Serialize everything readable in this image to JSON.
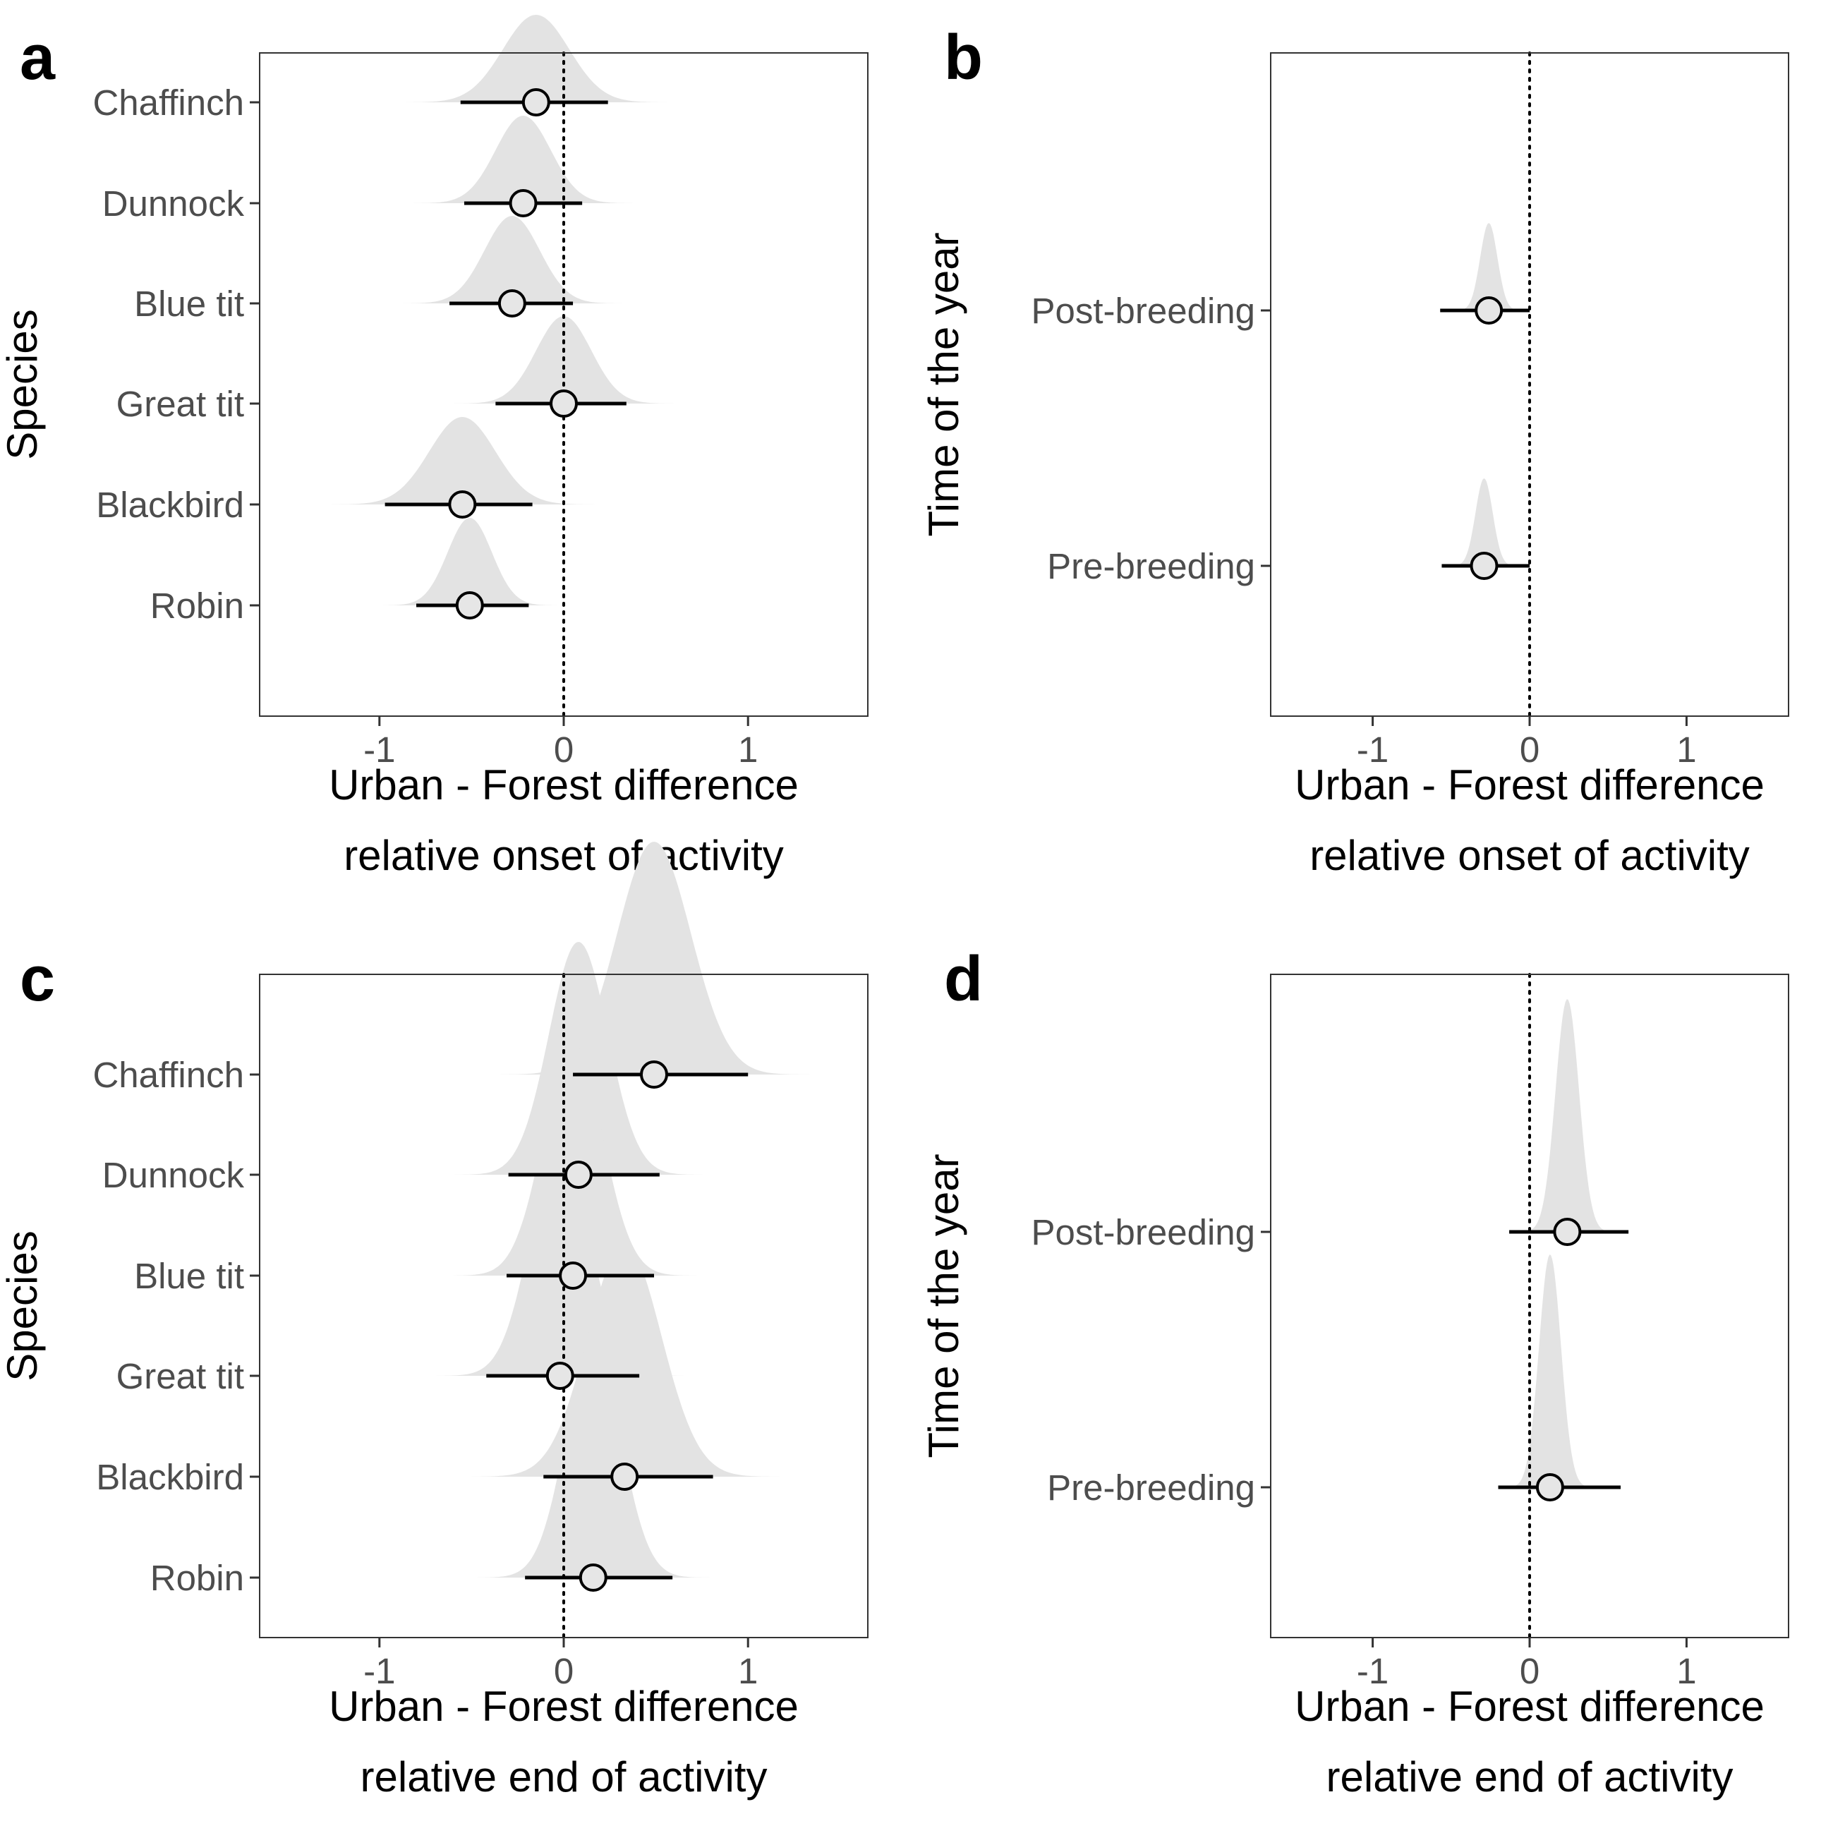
{
  "chart_data": [
    {
      "panel": "a",
      "type": "scatter",
      "xlabel": [
        "Urban - Forest difference",
        "relative onset of activity"
      ],
      "ylabel": "Species",
      "xlim": [
        -1.65,
        1.65
      ],
      "xticks": [
        -1,
        0,
        1
      ],
      "xtick_labels": [
        "-1",
        "0",
        "1"
      ],
      "reference_line": 0,
      "grid": false,
      "categories": [
        "Chaffinch",
        "Dunnock",
        "Blue tit",
        "Great tit",
        "Blackbird",
        "Robin"
      ],
      "estimates": [
        -0.15,
        -0.22,
        -0.28,
        0.0,
        -0.55,
        -0.51
      ],
      "interval_low": [
        -0.56,
        -0.54,
        -0.62,
        -0.37,
        -0.97,
        -0.8
      ],
      "interval_high": [
        0.24,
        0.1,
        0.05,
        0.34,
        -0.17,
        -0.19
      ],
      "density_sd": [
        0.18,
        0.15,
        0.15,
        0.15,
        0.18,
        0.12
      ],
      "density_range": [
        [
          -1.2,
          0.65
        ],
        [
          -0.85,
          0.45
        ],
        [
          -1.0,
          0.5
        ],
        [
          -0.8,
          0.8
        ],
        [
          -1.35,
          0.55
        ],
        [
          -1.15,
          0.1
        ]
      ]
    },
    {
      "panel": "b",
      "type": "scatter",
      "xlabel": [
        "Urban - Forest difference",
        "relative onset of activity"
      ],
      "ylabel": "Time of the year",
      "xlim": [
        -1.65,
        1.65
      ],
      "xticks": [
        -1,
        0,
        1
      ],
      "xtick_labels": [
        "-1",
        "0",
        "1"
      ],
      "reference_line": 0,
      "grid": false,
      "categories": [
        "Post-breeding",
        "Pre-breeding"
      ],
      "estimates": [
        -0.26,
        -0.29
      ],
      "interval_low": [
        -0.57,
        -0.56
      ],
      "interval_high": [
        0.0,
        0.0
      ],
      "density_sd": [
        0.055,
        0.055
      ],
      "density_range": [
        [
          -1.15,
          0.35
        ],
        [
          -1.0,
          0.35
        ]
      ]
    },
    {
      "panel": "c",
      "type": "scatter",
      "xlabel": [
        "Urban - Forest difference",
        "relative end of activity"
      ],
      "ylabel": "Species",
      "xlim": [
        -1.65,
        1.65
      ],
      "xticks": [
        -1,
        0,
        1
      ],
      "xtick_labels": [
        "-1",
        "0",
        "1"
      ],
      "reference_line": 0,
      "grid": false,
      "categories": [
        "Chaffinch",
        "Dunnock",
        "Blue tit",
        "Great tit",
        "Blackbird",
        "Robin"
      ],
      "estimates": [
        0.49,
        0.08,
        0.05,
        -0.02,
        0.33,
        0.16
      ],
      "interval_low": [
        0.05,
        -0.3,
        -0.31,
        -0.42,
        -0.11,
        -0.21
      ],
      "interval_high": [
        1.0,
        0.52,
        0.49,
        0.41,
        0.81,
        0.59
      ],
      "density_sd": [
        0.2,
        0.16,
        0.16,
        0.16,
        0.2,
        0.15
      ],
      "density_range": [
        [
          -0.35,
          1.5
        ],
        [
          -0.65,
          0.8
        ],
        [
          -0.6,
          0.75
        ],
        [
          -0.8,
          0.9
        ],
        [
          -0.5,
          1.3
        ],
        [
          -0.5,
          0.9
        ]
      ]
    },
    {
      "panel": "d",
      "type": "scatter",
      "xlabel": [
        "Urban - Forest difference",
        "relative end of activity"
      ],
      "ylabel": "Time of the year",
      "xlim": [
        -1.65,
        1.65
      ],
      "xticks": [
        -1,
        0,
        1
      ],
      "xtick_labels": [
        "-1",
        "0",
        "1"
      ],
      "reference_line": 0,
      "grid": false,
      "categories": [
        "Post-breeding",
        "Pre-breeding"
      ],
      "estimates": [
        0.24,
        0.13
      ],
      "interval_low": [
        -0.13,
        -0.2
      ],
      "interval_high": [
        0.63,
        0.58
      ],
      "density_sd": [
        0.075,
        0.07
      ],
      "density_range": [
        [
          -0.42,
          1.0
        ],
        [
          -0.5,
          0.82
        ]
      ]
    }
  ],
  "colors": {
    "density_fill": "#e3e3e3",
    "point_fill": "#e6e6e6",
    "ink": "#000000",
    "tick_text": "#4d4d4d",
    "frame": "#333333"
  }
}
